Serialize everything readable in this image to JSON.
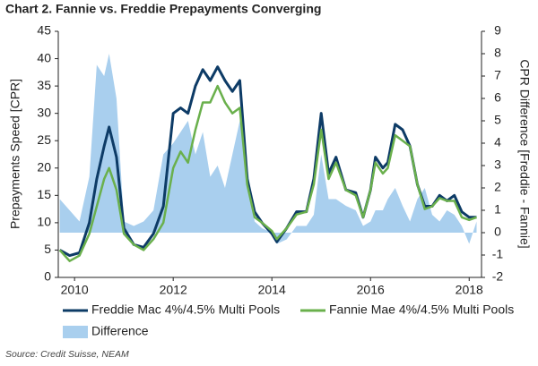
{
  "chart_data": {
    "type": "line",
    "title": "Chart 2. Fannie vs. Freddie Prepayments Converging",
    "y_label": "Prepayments Speed [CPR]",
    "y2_label": "CPR Difference [Freddie - Fannie]",
    "source": "Source: Credit Suisse, NEAM",
    "x": [
      2009.7,
      2009.9,
      2010.1,
      2010.3,
      2010.45,
      2010.6,
      2010.7,
      2010.85,
      2011.0,
      2011.2,
      2011.4,
      2011.6,
      2011.8,
      2012.0,
      2012.15,
      2012.3,
      2012.45,
      2012.6,
      2012.75,
      2012.9,
      2013.05,
      2013.2,
      2013.35,
      2013.5,
      2013.65,
      2013.8,
      2014.0,
      2014.1,
      2014.3,
      2014.5,
      2014.7,
      2014.85,
      2015.0,
      2015.15,
      2015.3,
      2015.5,
      2015.7,
      2015.85,
      2016.0,
      2016.1,
      2016.25,
      2016.35,
      2016.5,
      2016.65,
      2016.8,
      2016.95,
      2017.1,
      2017.25,
      2017.4,
      2017.55,
      2017.7,
      2017.85,
      2018.0,
      2018.15
    ],
    "series": [
      {
        "name": "Freddie Mac 4%/4.5% Multi Pools",
        "color": "#0d3b66",
        "values": [
          5,
          4,
          4.5,
          10,
          18,
          24,
          27.5,
          22,
          9,
          6,
          5.5,
          8,
          13,
          30,
          31,
          30,
          35,
          38,
          36,
          38.5,
          36,
          34,
          36,
          18,
          12,
          10,
          8,
          6.5,
          9,
          12,
          12,
          18,
          30,
          19,
          22,
          16,
          15.5,
          11,
          16,
          22,
          20,
          21,
          28,
          27,
          24,
          17,
          13,
          13,
          15,
          14,
          15,
          12,
          11,
          11
        ]
      },
      {
        "name": "Fannie Mae 4%/4.5% Multi Pools",
        "color": "#6ab04c",
        "values": [
          5,
          3,
          4,
          8,
          13,
          18,
          20,
          16,
          8,
          6,
          5,
          7,
          10,
          20,
          23,
          21,
          27,
          32,
          32,
          35,
          32,
          30,
          31,
          17,
          11,
          10,
          8.5,
          7,
          9,
          11.5,
          12,
          17,
          27,
          18,
          21,
          16,
          15,
          11,
          16,
          21,
          19,
          20,
          26,
          25,
          24,
          17,
          12.5,
          13,
          14.5,
          14,
          14,
          11,
          10.5,
          11
        ]
      },
      {
        "name": "Difference",
        "color": "#a9cfee",
        "axis": "y2",
        "values": [
          1.5,
          1,
          0.5,
          2.5,
          7.5,
          7,
          8,
          6,
          0.5,
          0.3,
          0.5,
          1,
          3.5,
          4,
          4.5,
          5,
          3.5,
          4.5,
          2.5,
          3,
          2,
          3.5,
          5,
          3,
          0.5,
          0.2,
          0,
          -0.5,
          -0.3,
          0.3,
          0.3,
          0.8,
          3.5,
          1.5,
          1.5,
          1.2,
          1,
          0.3,
          0.5,
          1,
          1,
          1.5,
          2,
          1.2,
          0.5,
          1.5,
          2,
          0.8,
          0.5,
          1,
          0.8,
          0.3,
          -0.5,
          0.5
        ]
      }
    ],
    "xlim": [
      2009.67,
      2018.25
    ],
    "xticks": [
      2010,
      2012,
      2014,
      2016,
      2018
    ],
    "ylim": [
      0,
      45
    ],
    "yticks": [
      0,
      5,
      10,
      15,
      20,
      25,
      30,
      35,
      40,
      45
    ],
    "y2lim": [
      -2,
      9
    ],
    "y2ticks": [
      -2,
      -1,
      0,
      1,
      2,
      3,
      4,
      5,
      6,
      7,
      8,
      9
    ]
  }
}
